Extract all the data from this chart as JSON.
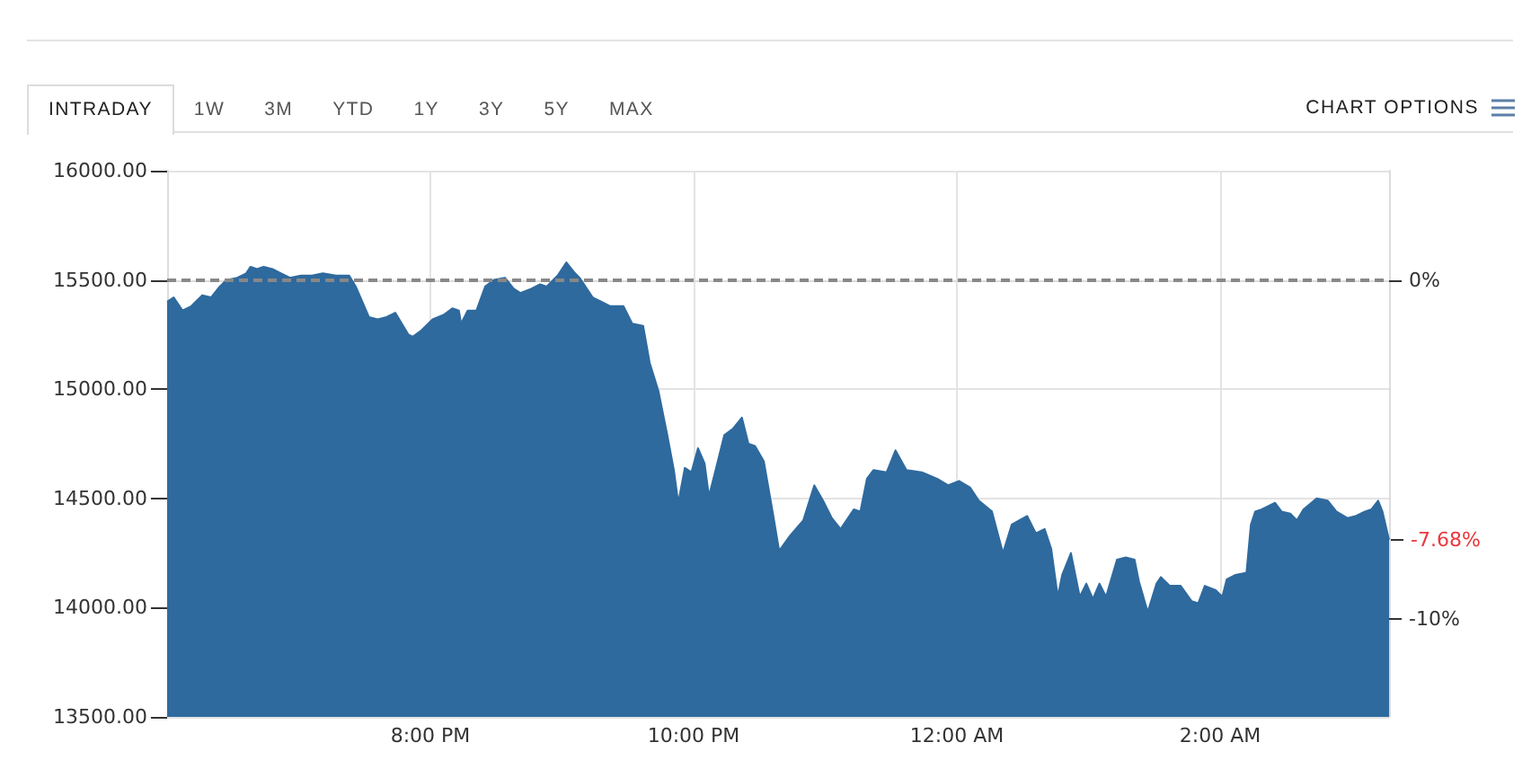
{
  "chart_data": {
    "type": "area",
    "color": "#2f6a9e",
    "marker": "none",
    "x": [
      "--01-01T18:00",
      "--01-01T18:03",
      "--01-01T18:07",
      "--01-01T18:11",
      "--01-01T18:16",
      "--01-01T18:20",
      "--01-01T18:24",
      "--01-01T18:27",
      "--01-01T18:32",
      "--01-01T18:36",
      "--01-01T18:38",
      "--01-01T18:41",
      "--01-01T18:44",
      "--01-01T18:48",
      "--01-01T18:52",
      "--01-01T18:56",
      "--01-01T19:01",
      "--01-01T19:06",
      "--01-01T19:11",
      "--01-01T19:17",
      "--01-01T19:23",
      "--01-01T19:26",
      "--01-01T19:29",
      "--01-01T19:32",
      "--01-01T19:36",
      "--01-01T19:40",
      "--01-01T19:44",
      "--01-01T19:47",
      "--01-01T19:50",
      "--01-01T19:52",
      "--01-01T19:56",
      "--01-01T20:01",
      "--01-01T20:06",
      "--01-01T20:10",
      "--01-01T20:13",
      "--01-01T20:14",
      "--01-01T20:17",
      "--01-01T20:21",
      "--01-01T20:25",
      "--01-01T20:29",
      "--01-01T20:34",
      "--01-01T20:38",
      "--01-01T20:41",
      "--01-01T20:46",
      "--01-01T20:50",
      "--01-01T20:53",
      "--01-01T20:58",
      "--01-01T21:02",
      "--01-01T21:06",
      "--01-01T21:08",
      "--01-01T21:14",
      "--01-01T21:18",
      "--01-01T21:22",
      "--01-01T21:28",
      "--01-01T21:32",
      "--01-01T21:37",
      "--01-01T21:40",
      "--01-01T21:44",
      "--01-01T21:48",
      "--01-01T21:51",
      "--01-01T21:53",
      "--01-01T21:56",
      "--01-01T21:59",
      "--01-01T22:02",
      "--01-01T22:05",
      "--01-01T22:07",
      "--01-01T22:10",
      "--01-01T22:14",
      "--01-01T22:18",
      "--01-01T22:22",
      "--01-01T22:25",
      "--01-01T22:28",
      "--01-01T22:32",
      "--01-01T22:36",
      "--01-01T22:39",
      "--01-01T22:44",
      "--01-01T22:50",
      "--01-01T22:55",
      "--01-01T22:59",
      "--01-01T23:03",
      "--01-01T23:07",
      "--01-01T23:13",
      "--01-01T23:16",
      "--01-01T23:19",
      "--01-01T23:22",
      "--01-01T23:28",
      "--01-01T23:32",
      "--01-01T23:37",
      "--01-01T23:44",
      "--01-01T23:51",
      "--01-01T23:56",
      "--01-02T00:01",
      "--01-02T00:06",
      "--01-02T00:10",
      "--01-02T00:16",
      "--01-02T00:21",
      "--01-02T00:25",
      "--01-02T00:32",
      "--01-02T00:36",
      "--01-02T00:40",
      "--01-02T00:43",
      "--01-02T00:46",
      "--01-02T00:48",
      "--01-02T00:52",
      "--01-02T00:56",
      "--01-02T00:59",
      "--01-02T01:02",
      "--01-02T01:05",
      "--01-02T01:08",
      "--01-02T01:13",
      "--01-02T01:17",
      "--01-02T01:21",
      "--01-02T01:23",
      "--01-02T01:27",
      "--01-02T01:31",
      "--01-02T01:33",
      "--01-02T01:37",
      "--01-02T01:42",
      "--01-02T01:47",
      "--01-02T01:50",
      "--01-02T01:53",
      "--01-02T01:58",
      "--01-02T02:01",
      "--01-02T02:03",
      "--01-02T02:07",
      "--01-02T02:12",
      "--01-02T02:14",
      "--01-02T02:16",
      "--01-02T02:19",
      "--01-02T02:25",
      "--01-02T02:28",
      "--01-02T02:32",
      "--01-02T02:35",
      "--01-02T02:38",
      "--01-02T02:44",
      "--01-02T02:49",
      "--01-02T02:53",
      "--01-02T02:58",
      "--01-02T03:02",
      "--01-02T03:06",
      "--01-02T03:09",
      "--01-02T03:12",
      "--01-02T03:14",
      "--01-02T03:17"
    ],
    "values": [
      15400,
      15420,
      15360,
      15380,
      15430,
      15420,
      15470,
      15500,
      15510,
      15530,
      15560,
      15550,
      15560,
      15550,
      15530,
      15510,
      15520,
      15520,
      15530,
      15520,
      15520,
      15470,
      15400,
      15330,
      15320,
      15330,
      15350,
      15300,
      15250,
      15240,
      15270,
      15320,
      15340,
      15370,
      15360,
      15300,
      15360,
      15360,
      15470,
      15500,
      15510,
      15460,
      15440,
      15460,
      15480,
      15470,
      15520,
      15580,
      15530,
      15510,
      15420,
      15400,
      15380,
      15380,
      15300,
      15290,
      15120,
      14990,
      14790,
      14630,
      14480,
      14640,
      14620,
      14730,
      14660,
      14510,
      14630,
      14790,
      14820,
      14870,
      14750,
      14740,
      14670,
      14440,
      14260,
      14330,
      14400,
      14560,
      14490,
      14410,
      14360,
      14450,
      14440,
      14590,
      14630,
      14620,
      14720,
      14630,
      14620,
      14590,
      14560,
      14580,
      14550,
      14490,
      14440,
      14250,
      14380,
      14420,
      14340,
      14360,
      14270,
      14050,
      14150,
      14250,
      14050,
      14110,
      14040,
      14110,
      14050,
      14220,
      14230,
      14220,
      14120,
      13980,
      14110,
      14140,
      14100,
      14100,
      14030,
      14020,
      14100,
      14080,
      14050,
      14130,
      14150,
      14160,
      14380,
      14440,
      14450,
      14480,
      14440,
      14430,
      14400,
      14450,
      14500,
      14490,
      14440,
      14410,
      14420,
      14440,
      14450,
      14490,
      14440,
      14310
    ],
    "xlim": [
      "--01-01T18:00",
      "--01-02T03:17"
    ],
    "xticks": [
      {
        "value": "--01-01T20:00",
        "label": "8:00 PM"
      },
      {
        "value": "--01-01T22:00",
        "label": "10:00 PM"
      },
      {
        "value": "--01-02T00:00",
        "label": "12:00 AM"
      },
      {
        "value": "--01-02T02:00",
        "label": "2:00 AM"
      }
    ],
    "ylim": [
      13500,
      16000
    ],
    "yticks": [
      {
        "value": 13500,
        "label": "13500.00"
      },
      {
        "value": 14000,
        "label": "14000.00"
      },
      {
        "value": 14500,
        "label": "14500.00"
      },
      {
        "value": 15000,
        "label": "15000.00"
      },
      {
        "value": 15500,
        "label": "15500.00"
      },
      {
        "value": 16000,
        "label": "16000.00"
      }
    ],
    "y2lim": [
      -12.9,
      3.23
    ],
    "y2ticks": [
      {
        "value": 0,
        "label": "0%"
      },
      {
        "value": -10,
        "label": "-10%"
      }
    ],
    "ref_lines": [
      {
        "axis": "y2",
        "value": 0,
        "color": "#888888",
        "line_style": "dashed"
      }
    ],
    "annotations": [
      "INTRADAY",
      "1W",
      "3M",
      "YTD",
      "1Y",
      "3Y",
      "5Y",
      "MAX",
      "CHART OPTIONS",
      {
        "text": "-7.68%",
        "x": "--01-02T03:17",
        "y": 14310
      }
    ],
    "grid": true
  }
}
